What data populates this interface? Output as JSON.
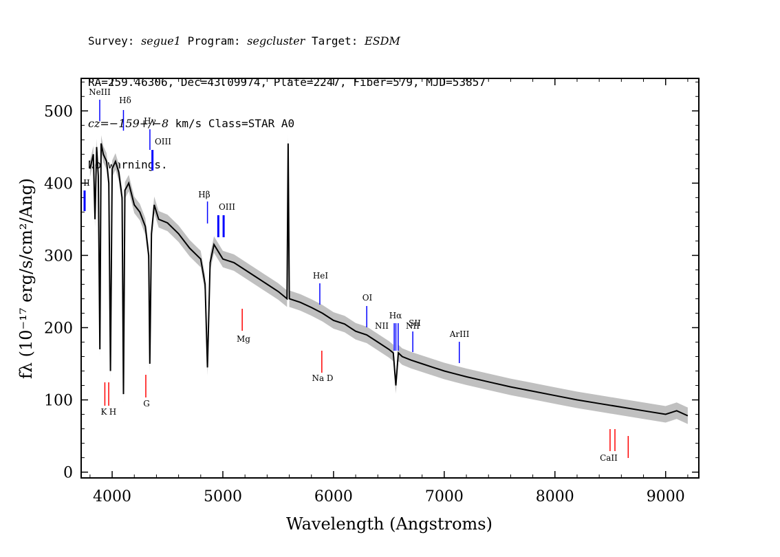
{
  "header": {
    "survey_label": "Survey: ",
    "survey": "segue1",
    "program_label": " Program: ",
    "program": "segcluster",
    "target_label": " Target: ",
    "target": "ESDM",
    "line2": "RA=259.46306, Dec=43.09974, Plate=2247, Fiber=579, MJD=53857",
    "cz": "cz=−159+/−8",
    "line3_rest": " km/s Class=STAR A0",
    "line4": "No warnings."
  },
  "colors": {
    "spectrum": "#000000",
    "error_band": "#c0c0c0",
    "emission_marker": "#0000ff",
    "absorption_marker": "#ff0000"
  },
  "chart_data": {
    "type": "line",
    "xlabel": "Wavelength (Angstroms)",
    "ylabel": "fλ (10⁻¹⁷ erg/s/cm²/Ang)",
    "xlim": [
      3720,
      9300
    ],
    "ylim": [
      -8,
      545
    ],
    "xticks": [
      4000,
      5000,
      6000,
      7000,
      8000,
      9000
    ],
    "xtick_labels": [
      "4000",
      "5000",
      "6000",
      "7000",
      "8000",
      "9000"
    ],
    "yticks": [
      0,
      100,
      200,
      300,
      400,
      500
    ],
    "ytick_labels": [
      "0",
      "100",
      "200",
      "300",
      "400",
      "500"
    ],
    "grid": false,
    "series": [
      {
        "x": [
          3800,
          3830,
          3845,
          3860,
          3875,
          3889,
          3900,
          3920,
          3950,
          3970,
          3985,
          4000,
          4030,
          4060,
          4090,
          4102,
          4115,
          4150,
          4200,
          4250,
          4300,
          4330,
          4340,
          4355,
          4380,
          4420,
          4500,
          4600,
          4700,
          4800,
          4840,
          4861,
          4885,
          4920,
          4960,
          5000,
          5100,
          5200,
          5300,
          5400,
          5500,
          5580,
          5590,
          5600,
          5700,
          5800,
          5900,
          6000,
          6100,
          6200,
          6300,
          6400,
          6500,
          6540,
          6563,
          6585,
          6620,
          6700,
          6800,
          6900,
          7000,
          7100,
          7200,
          7400,
          7600,
          7800,
          8000,
          8200,
          8400,
          8600,
          8800,
          9000,
          9100,
          9200
        ],
        "y": [
          420,
          440,
          350,
          450,
          410,
          170,
          455,
          440,
          430,
          400,
          140,
          420,
          430,
          415,
          380,
          108,
          390,
          400,
          370,
          360,
          340,
          300,
          150,
          330,
          370,
          350,
          345,
          330,
          310,
          295,
          260,
          145,
          290,
          315,
          305,
          295,
          290,
          280,
          270,
          260,
          250,
          240,
          455,
          240,
          235,
          228,
          220,
          210,
          205,
          195,
          190,
          180,
          170,
          165,
          120,
          165,
          160,
          155,
          150,
          145,
          140,
          136,
          132,
          125,
          118,
          112,
          106,
          100,
          95,
          90,
          85,
          80,
          85,
          78
        ]
      }
    ],
    "emission_lines": [
      {
        "label": "Hδ",
        "wavelength": 4102
      },
      {
        "label": "Hγ",
        "wavelength": 4341
      },
      {
        "label": "OIII",
        "wavelength": 4364
      },
      {
        "label": "Hβ",
        "wavelength": 4861
      },
      {
        "label": "OIII",
        "wavelength": 4959
      },
      {
        "label": "HeI",
        "wavelength": 5876
      },
      {
        "label": "OI",
        "wavelength": 6300
      },
      {
        "label": "NII",
        "wavelength": 6548
      },
      {
        "label": "Hα",
        "wavelength": 6563
      },
      {
        "label": "NII",
        "wavelength": 6584
      },
      {
        "label": "SII",
        "wavelength": 6716
      },
      {
        "label": "ArIII",
        "wavelength": 7136
      }
    ],
    "absorption_lines": [
      {
        "label": "K",
        "wavelength": 3934
      },
      {
        "label": "H",
        "wavelength": 3969
      },
      {
        "label": "G",
        "wavelength": 4304
      },
      {
        "label": "Mg",
        "wavelength": 5175
      },
      {
        "label": "Na D",
        "wavelength": 5894
      },
      {
        "label": "CaII",
        "wavelength": 8498
      }
    ],
    "partial_label": "II",
    "ne_label": "NeIII"
  }
}
